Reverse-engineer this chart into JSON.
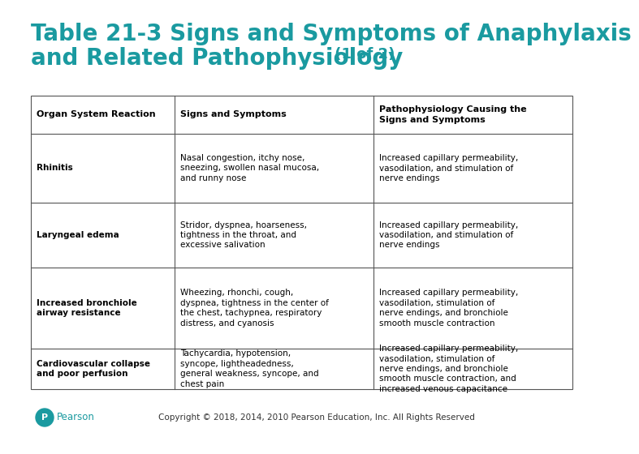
{
  "title_line1": "Table 21-3 Signs and Symptoms of Anaphylaxis",
  "title_line2": "and Related Pathophysiology",
  "title_suffix": " (1 of 2)",
  "title_color": "#1a9aa0",
  "bg_color": "#ffffff",
  "header_row": [
    "Organ System Reaction",
    "Signs and Symptoms",
    "Pathophysiology Causing the\nSigns and Symptoms"
  ],
  "rows": [
    {
      "col1": "Rhinitis",
      "col2": "Nasal congestion, itchy nose,\nsneezing, swollen nasal mucosa,\nand runny nose",
      "col3": "Increased capillary permeability,\nvasodilation, and stimulation of\nnerve endings"
    },
    {
      "col1": "Laryngeal edema",
      "col2": "Stridor, dyspnea, hoarseness,\ntightness in the throat, and\nexcessive salivation",
      "col3": "Increased capillary permeability,\nvasodilation, and stimulation of\nnerve endings"
    },
    {
      "col1": "Increased bronchiole\nairway resistance",
      "col2": "Wheezing, rhonchi, cough,\ndyspnea, tightness in the center of\nthe chest, tachypnea, respiratory\ndistress, and cyanosis",
      "col3": "Increased capillary permeability,\nvasodilation, stimulation of\nnerve endings, and bronchiole\nsmooth muscle contraction"
    },
    {
      "col1": "Cardiovascular collapse\nand poor perfusion",
      "col2": "Tachycardia, hypotension,\nsyncope, lightheadedness,\ngeneral weakness, syncope, and\nchest pain",
      "col3": "Increased capillary permeability,\nvasodilation, stimulation of\nnerve endings, and bronchiole\nsmooth muscle contraction, and\nincreased venous capacitance"
    }
  ],
  "line_color": "#555555",
  "header_text_color": "#000000",
  "cell_text_color": "#000000",
  "footer_text": "Copyright © 2018, 2014, 2010 Pearson Education, Inc. All Rights Reserved",
  "pearson_color": "#1a9aa0",
  "font_size_title": 20,
  "font_size_title_suffix": 13,
  "font_size_header": 8.0,
  "font_size_cell": 7.5,
  "font_size_footer": 7.5
}
